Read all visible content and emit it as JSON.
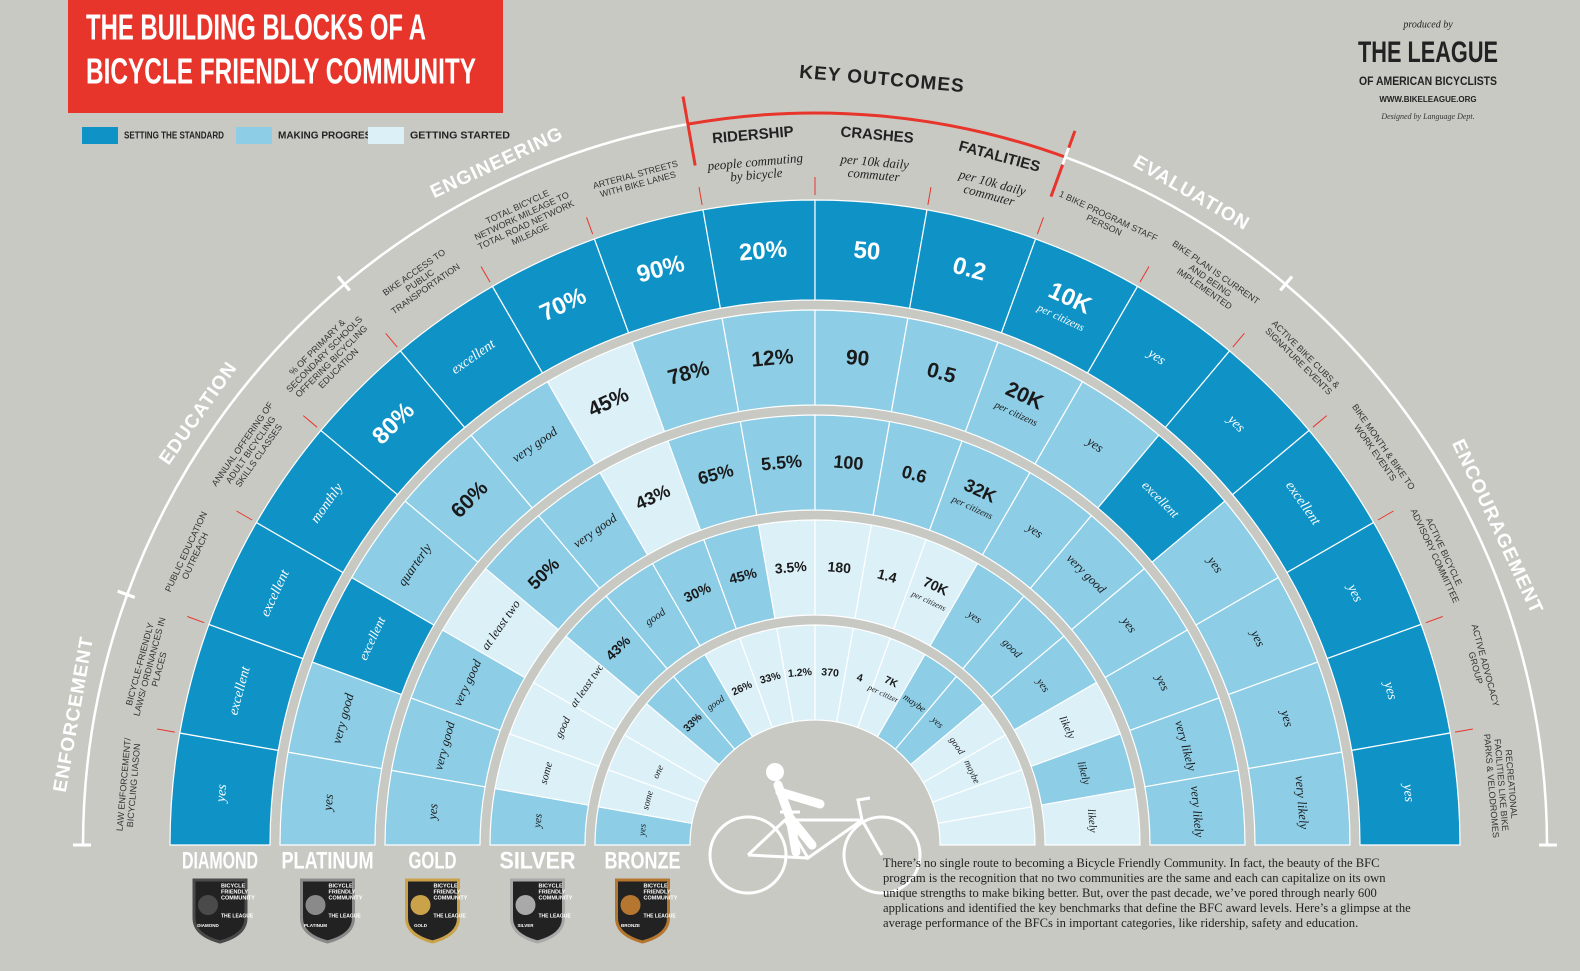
{
  "header": {
    "title": [
      "THE BUILDING BLOCKS OF A",
      "BICYCLE FRIENDLY COMMUNITY"
    ]
  },
  "legend": [
    {
      "label": "SETTING THE STANDARD",
      "color": "#0f93c7"
    },
    {
      "label": "MAKING PROGRESS",
      "color": "#8dcde6"
    },
    {
      "label": "GETTING STARTED",
      "color": "#dcf0f8"
    }
  ],
  "credits": {
    "produced_by": "produced by",
    "org_line1": "THE LEAGUE",
    "org_line2": "OF AMERICAN BICYCLISTS",
    "url": "WWW.BIKELEAGUE.ORG",
    "designer": "Designed by Language Dept."
  },
  "sections": [
    {
      "label": "ENFORCEMENT",
      "first": 0,
      "last": 1,
      "color": "#ffffff"
    },
    {
      "label": "EDUCATION",
      "first": 2,
      "last": 4,
      "color": "#ffffff"
    },
    {
      "label": "ENGINEERING",
      "first": 5,
      "last": 7,
      "color": "#ffffff"
    },
    {
      "label": "KEY OUTCOMES",
      "first": 8,
      "last": 10,
      "color": "#e8352b"
    },
    {
      "label": "EVALUATION",
      "first": 11,
      "last": 12,
      "color": "#ffffff"
    },
    {
      "label": "ENCOURAGEMENT",
      "first": 13,
      "last": 17,
      "color": "#ffffff"
    }
  ],
  "categories": [
    {
      "label": "LAW ENFORCEMENT/ BICYCLING LIASON"
    },
    {
      "label": "BICYCLE-FRIENDLY LAWS/ ORDINANCES IN PLACES"
    },
    {
      "label": "PUBLIC EDUCATION OUTREACH"
    },
    {
      "label": "ANNUAL OFFERING OF ADULT BICYCLING SKILLS CLASSES"
    },
    {
      "label": "% OF PRIMARY & SECONDARY SCHOOLS OFFERING BICYCLING EDUCATION"
    },
    {
      "label": "BIKE ACCESS TO PUBLIC TRANSPORTATION"
    },
    {
      "label": "TOTAL BICYCLE NETWORK MILEAGE TO TOTAL ROAD NETWORK MILEAGE"
    },
    {
      "label": "ARTERIAL STREETS WITH BIKE LANES"
    },
    {
      "label": "RIDERSHIP",
      "subtitle": "people commuting by bicycle"
    },
    {
      "label": "CRASHES",
      "subtitle": "per 10k daily commuter"
    },
    {
      "label": "FATALITIES",
      "subtitle": "per 10k daily commuter"
    },
    {
      "label": "1 BIKE PROGRAM STAFF PERSON",
      "unit": "per citizens"
    },
    {
      "label": "BIKE PLAN IS CURRENT AND BEING IMPLEMENTED"
    },
    {
      "label": "ACTIVE BIKE CUBS & SIGNATURE EVENTS"
    },
    {
      "label": "BIKE MONTH & BIKE TO WORK EVENTS"
    },
    {
      "label": "ACTIVE BICYCLE ADVISORY COMMITTEE"
    },
    {
      "label": "ACTIVE ADVOCACY GROUP"
    },
    {
      "label": "RECREATIONAL FACILITIES LIKE BIKE PARKS & VELODROMES"
    }
  ],
  "levels": [
    {
      "name": "DIAMOND",
      "badge_color": "#4a4a4a",
      "cells": [
        "yes",
        "excellent",
        "excellent",
        "monthly",
        "80%",
        "excellent",
        "70%",
        "90%",
        "20%",
        "50",
        "0.2",
        "10K",
        "yes",
        "yes",
        "excellent",
        "yes",
        "yes",
        "yes"
      ],
      "status": [
        0,
        0,
        0,
        0,
        0,
        0,
        0,
        0,
        0,
        0,
        0,
        0,
        0,
        0,
        0,
        0,
        0,
        0
      ]
    },
    {
      "name": "PLATINUM",
      "badge_color": "#8a8a8a",
      "cells": [
        "yes",
        "very good",
        "excellent",
        "quarterly",
        "60%",
        "very good",
        "45%",
        "78%",
        "12%",
        "90",
        "0.5",
        "20K",
        "yes",
        "excellent",
        "yes",
        "yes",
        "yes",
        "very likely"
      ],
      "status": [
        1,
        1,
        0,
        1,
        1,
        1,
        2,
        1,
        1,
        1,
        1,
        1,
        1,
        0,
        1,
        1,
        1,
        1
      ]
    },
    {
      "name": "GOLD",
      "badge_color": "#c9a24a",
      "cells": [
        "yes",
        "very good",
        "very good",
        "at least two",
        "50%",
        "very good",
        "43%",
        "65%",
        "5.5%",
        "100",
        "0.6",
        "32K",
        "yes",
        "very good",
        "yes",
        "yes",
        "very likely",
        "very likely"
      ],
      "status": [
        1,
        1,
        1,
        2,
        1,
        1,
        2,
        1,
        1,
        1,
        1,
        1,
        1,
        1,
        1,
        1,
        1,
        1
      ]
    },
    {
      "name": "SILVER",
      "badge_color": "#a9a9a9",
      "cells": [
        "yes",
        "some",
        "good",
        "at least two",
        "43%",
        "good",
        "30%",
        "45%",
        "3.5%",
        "180",
        "1.4",
        "70K",
        "yes",
        "good",
        "yes",
        "likely",
        "likely",
        "likely"
      ],
      "status": [
        1,
        2,
        2,
        2,
        1,
        1,
        1,
        1,
        2,
        2,
        2,
        2,
        1,
        1,
        1,
        2,
        1,
        2
      ]
    },
    {
      "name": "BRONZE",
      "badge_color": "#b5762f",
      "cells": [
        "yes",
        "some",
        "one",
        null,
        "33%",
        "good",
        "26%",
        "33%",
        "1.2%",
        "370",
        "4",
        "7K",
        "maybe",
        "yes",
        "good",
        "maybe",
        null,
        null
      ],
      "status": [
        1,
        2,
        2,
        2,
        1,
        1,
        2,
        2,
        2,
        2,
        2,
        2,
        1,
        1,
        2,
        2,
        2,
        2
      ]
    }
  ],
  "badge": {
    "lines": [
      "BICYCLE",
      "FRIENDLY",
      "COMMUNITY"
    ],
    "league": "THE LEAGUE"
  },
  "footnote": "There’s no single route to becoming a Bicycle Friendly Community. In fact, the beauty of the BFC program is the recognition that no two communities are the same and each can capitalize on its own unique strengths to make biking better. But, over the past decade, we’ve pored through nearly 600 applications and identified the key benchmarks that define the BFC award levels. Here’s a glimpse at the average performance of the BFCs in important categories, like ridership, safety and education."
}
